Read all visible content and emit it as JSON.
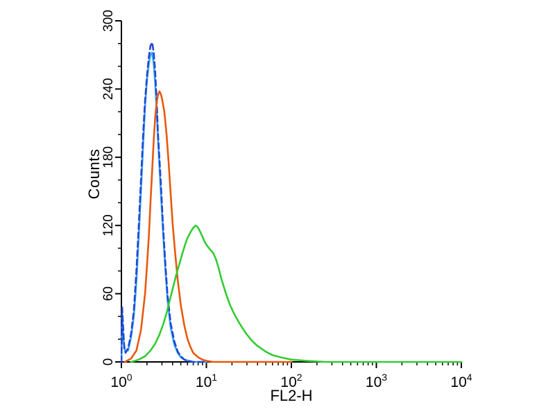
{
  "chart_data": {
    "type": "line",
    "title": "",
    "xlabel": "FL2-H",
    "ylabel": "Counts",
    "x_scale": "log10",
    "xlim": [
      1,
      10000
    ],
    "ylim": [
      0,
      300
    ],
    "x_major_exponents": [
      0,
      1,
      2,
      3,
      4
    ],
    "y_major_ticks": [
      0,
      60,
      120,
      180,
      240,
      300
    ],
    "y_minor_step": 20,
    "grid": "off",
    "legend": "none",
    "axis_color": "#000000",
    "background_color": "#ffffff",
    "series": [
      {
        "name": "cyan-solid-histogram",
        "color": "#35a8ee",
        "dash": "",
        "points": [
          [
            1.0,
            0
          ],
          [
            1.02,
            40
          ],
          [
            1.05,
            22
          ],
          [
            1.1,
            10
          ],
          [
            1.2,
            10
          ],
          [
            1.3,
            22
          ],
          [
            1.4,
            40
          ],
          [
            1.5,
            70
          ],
          [
            1.6,
            110
          ],
          [
            1.7,
            150
          ],
          [
            1.8,
            190
          ],
          [
            1.9,
            225
          ],
          [
            2.0,
            248
          ],
          [
            2.1,
            262
          ],
          [
            2.2,
            270
          ],
          [
            2.3,
            272
          ],
          [
            2.4,
            262
          ],
          [
            2.5,
            245
          ],
          [
            2.6,
            222
          ],
          [
            2.7,
            195
          ],
          [
            2.9,
            152
          ],
          [
            3.1,
            112
          ],
          [
            3.3,
            80
          ],
          [
            3.5,
            54
          ],
          [
            3.8,
            30
          ],
          [
            4.2,
            15
          ],
          [
            4.6,
            8
          ],
          [
            5.0,
            4
          ],
          [
            5.5,
            2
          ],
          [
            6.2,
            1
          ],
          [
            7.0,
            0
          ],
          [
            10,
            0
          ]
        ]
      },
      {
        "name": "blue-dashed-histogram",
        "color": "#2247d6",
        "dash": "8 5",
        "points": [
          [
            1.0,
            0
          ],
          [
            1.02,
            48
          ],
          [
            1.05,
            30
          ],
          [
            1.08,
            12
          ],
          [
            1.12,
            8
          ],
          [
            1.2,
            12
          ],
          [
            1.3,
            25
          ],
          [
            1.4,
            45
          ],
          [
            1.5,
            80
          ],
          [
            1.6,
            120
          ],
          [
            1.7,
            160
          ],
          [
            1.8,
            200
          ],
          [
            1.9,
            230
          ],
          [
            2.0,
            252
          ],
          [
            2.1,
            268
          ],
          [
            2.2,
            278
          ],
          [
            2.3,
            281
          ],
          [
            2.4,
            272
          ],
          [
            2.5,
            255
          ],
          [
            2.6,
            230
          ],
          [
            2.7,
            200
          ],
          [
            2.9,
            160
          ],
          [
            3.1,
            118
          ],
          [
            3.3,
            85
          ],
          [
            3.5,
            58
          ],
          [
            3.8,
            34
          ],
          [
            4.2,
            18
          ],
          [
            4.6,
            9
          ],
          [
            5.0,
            5
          ],
          [
            5.5,
            2
          ],
          [
            6.0,
            1
          ],
          [
            7.0,
            0
          ],
          [
            10,
            0
          ]
        ]
      },
      {
        "name": "orange-solid-histogram",
        "color": "#e8590c",
        "dash": "",
        "points": [
          [
            1.1,
            0
          ],
          [
            1.3,
            3
          ],
          [
            1.5,
            10
          ],
          [
            1.7,
            28
          ],
          [
            1.9,
            60
          ],
          [
            2.0,
            85
          ],
          [
            2.1,
            110
          ],
          [
            2.2,
            140
          ],
          [
            2.3,
            168
          ],
          [
            2.4,
            195
          ],
          [
            2.5,
            215
          ],
          [
            2.6,
            228
          ],
          [
            2.7,
            235
          ],
          [
            2.8,
            238
          ],
          [
            2.9,
            236
          ],
          [
            3.0,
            232
          ],
          [
            3.2,
            220
          ],
          [
            3.4,
            200
          ],
          [
            3.6,
            175
          ],
          [
            3.8,
            148
          ],
          [
            4.0,
            122
          ],
          [
            4.3,
            95
          ],
          [
            4.6,
            72
          ],
          [
            5.0,
            50
          ],
          [
            5.5,
            32
          ],
          [
            6.0,
            20
          ],
          [
            6.5,
            13
          ],
          [
            7.0,
            8
          ],
          [
            8.0,
            4
          ],
          [
            9.0,
            2
          ],
          [
            10,
            1
          ],
          [
            12,
            0
          ],
          [
            100,
            0
          ]
        ]
      },
      {
        "name": "green-solid-histogram",
        "color": "#33cc33",
        "dash": "",
        "points": [
          [
            1.3,
            0
          ],
          [
            1.6,
            2
          ],
          [
            1.9,
            5
          ],
          [
            2.2,
            10
          ],
          [
            2.5,
            16
          ],
          [
            2.8,
            24
          ],
          [
            3.1,
            33
          ],
          [
            3.4,
            43
          ],
          [
            3.7,
            54
          ],
          [
            4.0,
            64
          ],
          [
            4.4,
            76
          ],
          [
            4.8,
            86
          ],
          [
            5.2,
            95
          ],
          [
            5.6,
            103
          ],
          [
            6.0,
            109
          ],
          [
            6.5,
            114
          ],
          [
            7.0,
            118
          ],
          [
            7.5,
            120
          ],
          [
            8.0,
            118
          ],
          [
            8.5,
            114
          ],
          [
            9.0,
            110
          ],
          [
            9.5,
            106
          ],
          [
            10,
            103
          ],
          [
            11,
            99
          ],
          [
            12,
            96
          ],
          [
            13,
            90
          ],
          [
            14,
            82
          ],
          [
            15,
            73
          ],
          [
            17,
            60
          ],
          [
            19,
            50
          ],
          [
            21,
            43
          ],
          [
            24,
            35
          ],
          [
            27,
            29
          ],
          [
            30,
            24
          ],
          [
            35,
            18
          ],
          [
            40,
            14
          ],
          [
            50,
            9
          ],
          [
            60,
            6
          ],
          [
            75,
            4
          ],
          [
            100,
            2
          ],
          [
            150,
            1
          ],
          [
            250,
            0
          ],
          [
            10000,
            0
          ]
        ]
      }
    ]
  }
}
